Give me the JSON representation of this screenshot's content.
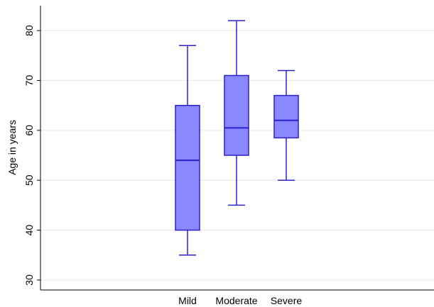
{
  "chart_data": {
    "type": "boxplot",
    "title": "",
    "xlabel": "",
    "ylabel": "Age in years",
    "ylim": [
      28,
      85
    ],
    "yticks": [
      30,
      40,
      50,
      60,
      70,
      80
    ],
    "grid": true,
    "legend": "none",
    "categories": [
      "Mild",
      "Moderate",
      "Severe"
    ],
    "boxes": [
      {
        "category": "Mild",
        "min": 35,
        "q1": 40,
        "median": 54,
        "q3": 65,
        "max": 77
      },
      {
        "category": "Moderate",
        "min": 45,
        "q1": 55,
        "median": 60.5,
        "q3": 71,
        "max": 82
      },
      {
        "category": "Severe",
        "min": 50,
        "q1": 58.5,
        "median": 62,
        "q3": 67,
        "max": 72
      }
    ],
    "colors": {
      "fill": "#8b87ff",
      "stroke": "#2b22cc"
    }
  }
}
